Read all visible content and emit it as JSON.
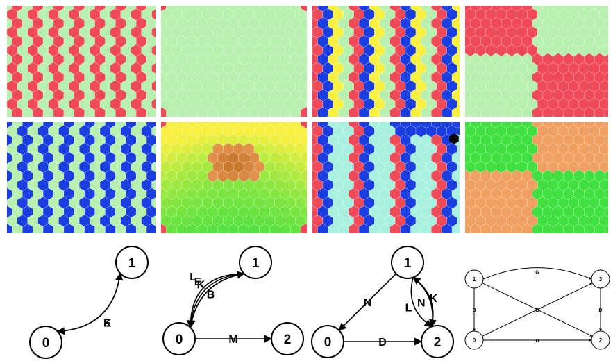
{
  "colors": {
    "light_green": "#b8f0b0",
    "red": "#f04a58",
    "blue": "#1a3ee0",
    "yellow": "#f8f040",
    "cyan": "#a8f0e0",
    "orange": "#f0a060",
    "green": "#40e040",
    "black": "#000000"
  },
  "panels": [
    {
      "id": "p1",
      "pattern": "dots",
      "base": "red",
      "accent": "light_green"
    },
    {
      "id": "p2",
      "pattern": "corners",
      "base": "light_green",
      "accent": "red"
    },
    {
      "id": "p3",
      "pattern": "stripes",
      "base": "light_green",
      "accent": "red,blue,yellow"
    },
    {
      "id": "p4",
      "pattern": "quadrants",
      "base": "light_green",
      "accent": "red"
    },
    {
      "id": "p5",
      "pattern": "dots",
      "base": "light_green",
      "accent": "blue"
    },
    {
      "id": "p6",
      "pattern": "gradient",
      "base": "yellow",
      "accent": "green"
    },
    {
      "id": "p7",
      "pattern": "stripes",
      "base": "cyan",
      "accent": "red,blue,cyan"
    },
    {
      "id": "p8",
      "pattern": "quadrants",
      "base": "orange",
      "accent": "green"
    }
  ],
  "graphs": [
    {
      "id": "g1",
      "nodes": [
        {
          "id": "1",
          "label": "1"
        },
        {
          "id": "0",
          "label": "0"
        }
      ],
      "edges": [
        {
          "from": "0",
          "to": "1",
          "label": "E"
        },
        {
          "from": "1",
          "to": "0",
          "label": "K"
        }
      ]
    },
    {
      "id": "g2",
      "nodes": [
        {
          "id": "1",
          "label": "1"
        },
        {
          "id": "0",
          "label": "0"
        },
        {
          "id": "2",
          "label": "2"
        }
      ],
      "edges": [
        {
          "from": "1",
          "to": "0",
          "label": "L"
        },
        {
          "from": "1",
          "to": "0",
          "label": "K"
        },
        {
          "from": "1",
          "to": "0",
          "label": "B"
        },
        {
          "from": "0",
          "to": "1",
          "label": "E"
        },
        {
          "from": "0",
          "to": "2",
          "label": "M"
        }
      ]
    },
    {
      "id": "g3",
      "nodes": [
        {
          "id": "1",
          "label": "1"
        },
        {
          "id": "0",
          "label": "0"
        },
        {
          "id": "2",
          "label": "2"
        }
      ],
      "edges": [
        {
          "from": "1",
          "to": "0",
          "label": "N"
        },
        {
          "from": "1",
          "to": "2",
          "label": "L"
        },
        {
          "from": "1",
          "to": "2",
          "label": "K"
        },
        {
          "from": "2",
          "to": "1",
          "label": "N"
        },
        {
          "from": "0",
          "to": "2",
          "label": "D"
        }
      ]
    },
    {
      "id": "g4",
      "nodes": [
        {
          "id": "1",
          "label": "1"
        },
        {
          "id": "3",
          "label": "3"
        },
        {
          "id": "0",
          "label": "0"
        },
        {
          "id": "2",
          "label": "2"
        }
      ],
      "edges": [
        {
          "from": "1",
          "to": "3",
          "label": "G"
        },
        {
          "from": "1",
          "to": "2",
          "label": "B"
        },
        {
          "from": "1",
          "to": "0",
          "label": "B"
        },
        {
          "from": "0",
          "to": "3",
          "label": ""
        },
        {
          "from": "3",
          "to": "2",
          "label": "D"
        },
        {
          "from": "0",
          "to": "2",
          "label": "D"
        }
      ]
    }
  ]
}
